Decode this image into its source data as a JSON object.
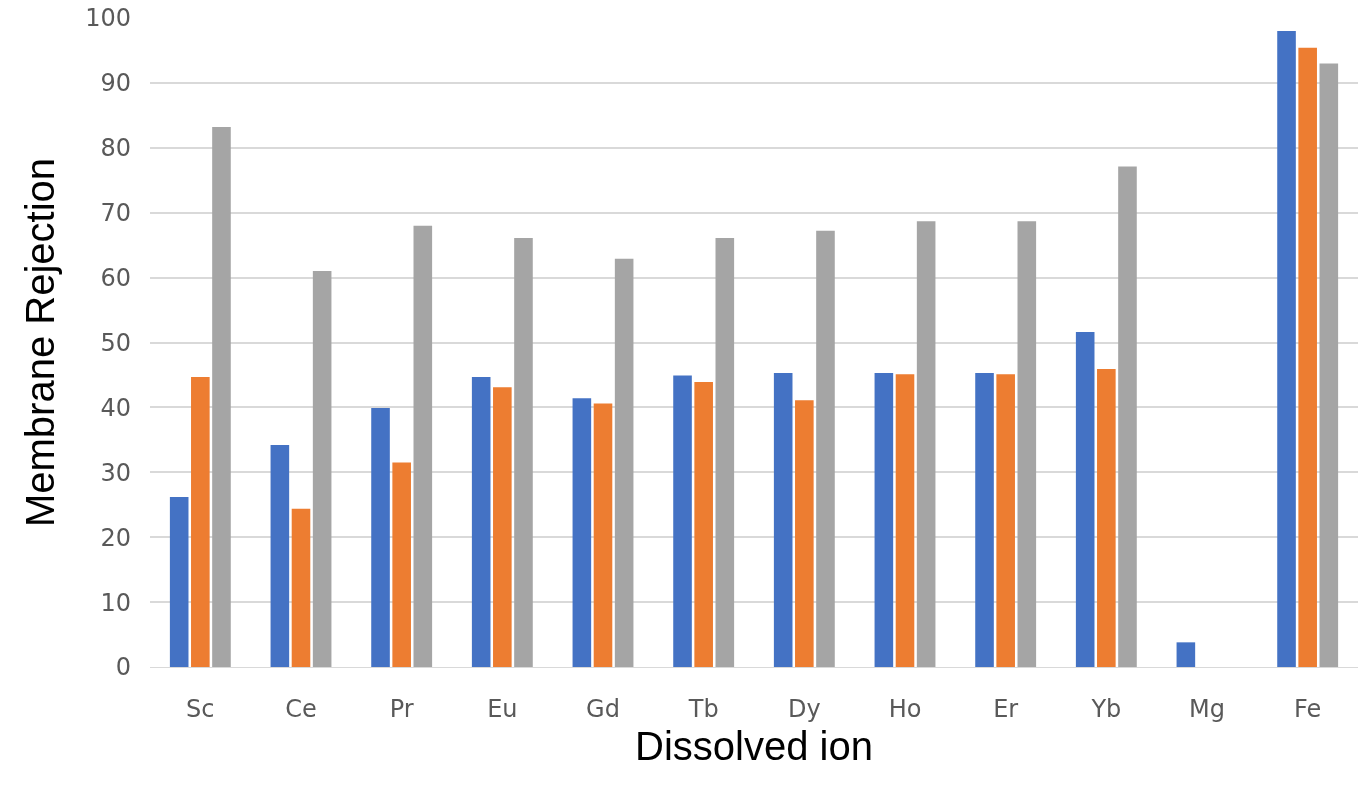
{
  "chart_data": {
    "type": "bar",
    "xlabel": "Dissolved ion",
    "ylabel": "Membrane Rejection",
    "categories": [
      "Sc",
      "Ce",
      "Pr",
      "Eu",
      "Gd",
      "Tb",
      "Dy",
      "Ho",
      "Er",
      "Yb",
      "Mg",
      "Fe"
    ],
    "series": [
      {
        "color": "#4472c4",
        "values": [
          26.2,
          34.2,
          39.9,
          44.7,
          41.4,
          44.9,
          45.3,
          45.3,
          45.3,
          51.6,
          3.8,
          98
        ]
      },
      {
        "color": "#ed7d31",
        "values": [
          44.7,
          24.4,
          31.5,
          43.1,
          40.6,
          43.9,
          41.1,
          45.1,
          45.1,
          45.9,
          0,
          95.4
        ]
      },
      {
        "color": "#a5a5a5",
        "values": [
          83.2,
          61,
          68,
          66.1,
          62.9,
          66.1,
          67.2,
          68.7,
          68.7,
          77.1,
          0,
          93
        ]
      }
    ],
    "ylim": [
      0,
      100
    ],
    "yticks": [
      0,
      10,
      20,
      30,
      40,
      50,
      60,
      70,
      80,
      90,
      100
    ],
    "grid": "y"
  }
}
